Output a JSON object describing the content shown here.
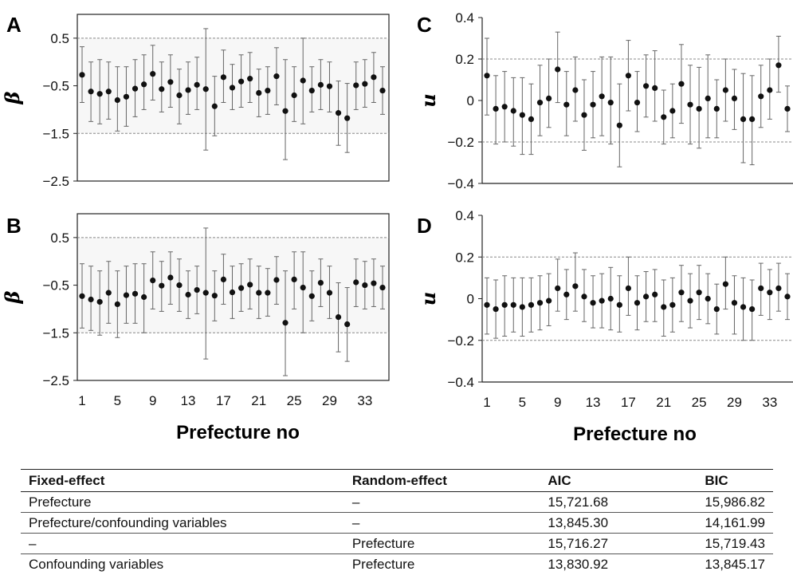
{
  "chart_data": [
    {
      "panel": "A",
      "type": "scatter",
      "ylabel": "β",
      "ylim": [
        -2.5,
        1.0
      ],
      "yticks": [
        "0.5",
        "−0.5",
        "−1.5",
        "−2.5"
      ],
      "reference_lines": [
        0.5,
        -1.5
      ],
      "x": [
        1,
        2,
        3,
        4,
        5,
        6,
        7,
        8,
        9,
        10,
        11,
        12,
        13,
        14,
        15,
        16,
        17,
        18,
        19,
        20,
        21,
        22,
        23,
        24,
        25,
        26,
        27,
        28,
        29,
        30,
        31,
        32,
        33,
        34,
        35
      ],
      "y": [
        -0.27,
        -0.62,
        -0.67,
        -0.62,
        -0.8,
        -0.73,
        -0.56,
        -0.47,
        -0.25,
        -0.57,
        -0.42,
        -0.7,
        -0.59,
        -0.48,
        -0.57,
        -0.93,
        -0.32,
        -0.54,
        -0.41,
        -0.35,
        -0.65,
        -0.6,
        -0.3,
        -1.03,
        -0.7,
        -0.39,
        -0.6,
        -0.48,
        -0.51,
        -1.07,
        -1.18,
        -0.49,
        -0.46,
        -0.32,
        -0.6
      ],
      "lower": [
        -0.85,
        -1.25,
        -1.3,
        -1.2,
        -1.45,
        -1.35,
        -1.15,
        -1.0,
        -0.8,
        -1.05,
        -0.95,
        -1.3,
        -1.1,
        -1.0,
        -1.85,
        -1.55,
        -0.85,
        -1.0,
        -0.95,
        -0.85,
        -1.15,
        -1.1,
        -0.9,
        -2.05,
        -1.25,
        -1.3,
        -1.05,
        -1.0,
        -1.05,
        -1.75,
        -1.9,
        -1.0,
        -0.95,
        -0.85,
        -1.1
      ],
      "upper": [
        0.32,
        0.0,
        0.05,
        0.0,
        -0.1,
        -0.1,
        0.05,
        0.15,
        0.35,
        0.0,
        0.15,
        -0.15,
        0.0,
        0.1,
        0.7,
        -0.3,
        0.25,
        -0.05,
        0.15,
        0.2,
        -0.15,
        -0.1,
        0.3,
        0.05,
        -0.1,
        0.5,
        -0.1,
        0.05,
        0.0,
        -0.4,
        -0.45,
        0.0,
        0.05,
        0.2,
        -0.1
      ]
    },
    {
      "panel": "B",
      "type": "scatter",
      "ylabel": "β",
      "ylim": [
        -2.5,
        1.0
      ],
      "yticks": [
        "0.5",
        "−0.5",
        "−1.5",
        "−2.5"
      ],
      "reference_lines": [
        0.5,
        -1.5
      ],
      "xticks": [
        "1",
        "5",
        "9",
        "13",
        "17",
        "21",
        "25",
        "29",
        "33"
      ],
      "xlabel": "Prefecture no",
      "x": [
        1,
        2,
        3,
        4,
        5,
        6,
        7,
        8,
        9,
        10,
        11,
        12,
        13,
        14,
        15,
        16,
        17,
        18,
        19,
        20,
        21,
        22,
        23,
        24,
        25,
        26,
        27,
        28,
        29,
        30,
        31,
        32,
        33,
        34,
        35
      ],
      "y": [
        -0.73,
        -0.8,
        -0.85,
        -0.66,
        -0.9,
        -0.71,
        -0.68,
        -0.75,
        -0.4,
        -0.51,
        -0.34,
        -0.5,
        -0.7,
        -0.6,
        -0.66,
        -0.72,
        -0.38,
        -0.65,
        -0.56,
        -0.49,
        -0.66,
        -0.66,
        -0.39,
        -1.29,
        -0.38,
        -0.55,
        -0.73,
        -0.45,
        -0.66,
        -1.17,
        -1.32,
        -0.44,
        -0.5,
        -0.46,
        -0.55
      ],
      "lower": [
        -1.4,
        -1.45,
        -1.55,
        -1.3,
        -1.6,
        -1.3,
        -1.3,
        -1.5,
        -1.0,
        -1.05,
        -0.9,
        -1.05,
        -1.2,
        -1.1,
        -2.05,
        -1.25,
        -0.9,
        -1.2,
        -1.05,
        -1.0,
        -1.2,
        -1.15,
        -0.9,
        -2.4,
        -1.0,
        -1.5,
        -1.25,
        -0.95,
        -1.2,
        -1.9,
        -2.1,
        -0.95,
        -1.0,
        -0.95,
        -1.0
      ],
      "upper": [
        -0.05,
        -0.1,
        -0.2,
        0.0,
        -0.2,
        -0.1,
        -0.05,
        -0.05,
        0.2,
        0.0,
        0.2,
        0.05,
        -0.2,
        -0.1,
        0.7,
        -0.2,
        0.15,
        -0.1,
        -0.05,
        0.05,
        -0.1,
        -0.15,
        0.1,
        -0.2,
        0.2,
        0.2,
        -0.2,
        0.05,
        -0.1,
        -0.45,
        -0.55,
        0.05,
        0.0,
        0.05,
        -0.1
      ]
    },
    {
      "panel": "C",
      "type": "scatter",
      "ylabel": "u",
      "ylim": [
        -0.4,
        0.4
      ],
      "yticks": [
        "0.4",
        "0.2",
        "0",
        "−0.2",
        "−0.4"
      ],
      "reference_lines": [
        0.2,
        -0.2
      ],
      "x": [
        1,
        2,
        3,
        4,
        5,
        6,
        7,
        8,
        9,
        10,
        11,
        12,
        13,
        14,
        15,
        16,
        17,
        18,
        19,
        20,
        21,
        22,
        23,
        24,
        25,
        26,
        27,
        28,
        29,
        30,
        31,
        32,
        33,
        34,
        35
      ],
      "y": [
        0.12,
        -0.04,
        -0.03,
        -0.05,
        -0.07,
        -0.09,
        -0.01,
        0.01,
        0.15,
        -0.02,
        0.05,
        -0.07,
        -0.02,
        0.02,
        -0.01,
        -0.12,
        0.12,
        -0.01,
        0.07,
        0.06,
        -0.08,
        -0.05,
        0.08,
        -0.02,
        -0.04,
        0.01,
        -0.04,
        0.05,
        0.01,
        -0.09,
        -0.09,
        0.02,
        0.05,
        0.17,
        -0.04
      ],
      "lower": [
        -0.07,
        -0.21,
        -0.2,
        -0.22,
        -0.26,
        -0.26,
        -0.17,
        -0.13,
        -0.01,
        -0.17,
        -0.1,
        -0.24,
        -0.18,
        -0.17,
        -0.21,
        -0.32,
        -0.05,
        -0.15,
        -0.08,
        -0.1,
        -0.21,
        -0.18,
        -0.11,
        -0.21,
        -0.23,
        -0.18,
        -0.18,
        -0.1,
        -0.14,
        -0.3,
        -0.31,
        -0.13,
        -0.09,
        0.04,
        -0.15
      ],
      "upper": [
        0.3,
        0.12,
        0.14,
        0.11,
        0.11,
        0.08,
        0.17,
        0.2,
        0.33,
        0.14,
        0.21,
        0.1,
        0.14,
        0.21,
        0.21,
        0.08,
        0.29,
        0.14,
        0.22,
        0.24,
        0.05,
        0.08,
        0.27,
        0.17,
        0.16,
        0.22,
        0.1,
        0.2,
        0.15,
        0.13,
        0.12,
        0.17,
        0.2,
        0.31,
        0.07
      ]
    },
    {
      "panel": "D",
      "type": "scatter",
      "ylabel": "u",
      "ylim": [
        -0.4,
        0.4
      ],
      "yticks": [
        "0.4",
        "0.2",
        "0",
        "−0.2",
        "−0.4"
      ],
      "reference_lines": [
        0.2,
        -0.2
      ],
      "xticks": [
        "1",
        "5",
        "9",
        "13",
        "17",
        "21",
        "25",
        "29",
        "33"
      ],
      "xlabel": "Prefecture no",
      "x": [
        1,
        2,
        3,
        4,
        5,
        6,
        7,
        8,
        9,
        10,
        11,
        12,
        13,
        14,
        15,
        16,
        17,
        18,
        19,
        20,
        21,
        22,
        23,
        24,
        25,
        26,
        27,
        28,
        29,
        30,
        31,
        32,
        33,
        34,
        35
      ],
      "y": [
        -0.03,
        -0.05,
        -0.03,
        -0.03,
        -0.04,
        -0.03,
        -0.02,
        -0.01,
        0.05,
        0.02,
        0.06,
        0.01,
        -0.02,
        -0.01,
        0.0,
        -0.03,
        0.05,
        -0.02,
        0.01,
        0.02,
        -0.04,
        -0.03,
        0.03,
        -0.01,
        0.03,
        0.0,
        -0.05,
        0.07,
        -0.02,
        -0.04,
        -0.05,
        0.05,
        0.03,
        0.05,
        0.01
      ],
      "lower": [
        -0.17,
        -0.19,
        -0.18,
        -0.16,
        -0.18,
        -0.16,
        -0.15,
        -0.13,
        -0.06,
        -0.1,
        -0.06,
        -0.11,
        -0.14,
        -0.14,
        -0.15,
        -0.16,
        -0.08,
        -0.15,
        -0.11,
        -0.11,
        -0.18,
        -0.16,
        -0.11,
        -0.14,
        -0.1,
        -0.12,
        -0.17,
        -0.05,
        -0.17,
        -0.2,
        -0.2,
        -0.08,
        -0.1,
        -0.06,
        -0.1
      ],
      "upper": [
        0.1,
        0.09,
        0.11,
        0.1,
        0.1,
        0.1,
        0.11,
        0.12,
        0.19,
        0.14,
        0.22,
        0.14,
        0.11,
        0.12,
        0.15,
        0.11,
        0.2,
        0.11,
        0.13,
        0.14,
        0.09,
        0.1,
        0.16,
        0.12,
        0.16,
        0.12,
        0.07,
        0.2,
        0.11,
        0.1,
        0.09,
        0.17,
        0.14,
        0.17,
        0.12
      ]
    }
  ],
  "table": {
    "headers": [
      "Fixed-effect",
      "Random-effect",
      "AIC",
      "BIC"
    ],
    "rows": [
      [
        "Prefecture",
        "–",
        "15,721.68",
        "15,986.82"
      ],
      [
        "Prefecture/confounding variables",
        "–",
        "13,845.30",
        "14,161.99"
      ],
      [
        "–",
        "Prefecture",
        "15,716.27",
        "15,719.43"
      ],
      [
        "Confounding variables",
        "Prefecture",
        "13,830.92",
        "13,845.17"
      ]
    ]
  }
}
